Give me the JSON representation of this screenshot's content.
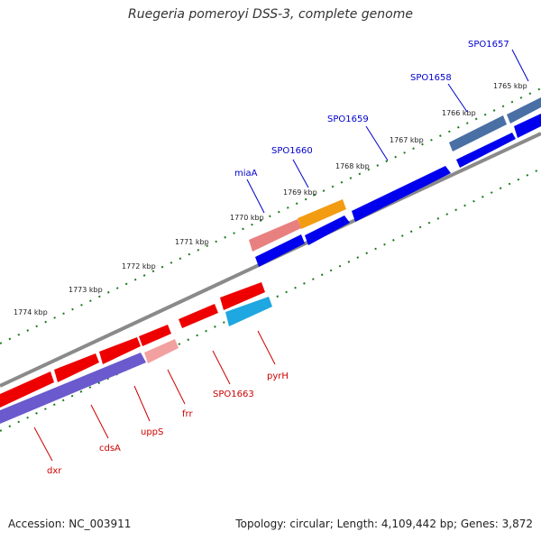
{
  "title": "Ruegeria pomeroyi DSS-3, complete genome",
  "footer": {
    "accession": "Accession: NC_003911",
    "summary": "Topology: circular; Length: 4,109,442 bp; Genes: 3,872"
  },
  "colors": {
    "backbone": "#808080",
    "tick": "#1a7a1a",
    "cds_forward": "#0000ee",
    "cds_reverse": "#ee0000",
    "trna_forward": "#e98080",
    "trna_reverse": "#f2a0a0",
    "cog_blue": "#6a5acd",
    "cog_orange": "#f39c12",
    "cog_cyan": "#1ea7e0",
    "cog_slate": "#4a6fa5",
    "label_forward": "#0000cc",
    "label_reverse": "#cc0000"
  },
  "tick_labels": [
    "1765 kbp",
    "1766 kbp",
    "1767 kbp",
    "1768 kbp",
    "1769 kbp",
    "1770 kbp",
    "1771 kbp",
    "1772 kbp",
    "1773 kbp",
    "1774 kbp"
  ],
  "forward_gene_labels": [
    "SPO1657",
    "SPO1658",
    "SPO1659",
    "SPO1660",
    "miaA"
  ],
  "reverse_gene_labels": [
    "pyrH",
    "SPO1663",
    "frr",
    "uppS",
    "cdsA",
    "dxr"
  ]
}
